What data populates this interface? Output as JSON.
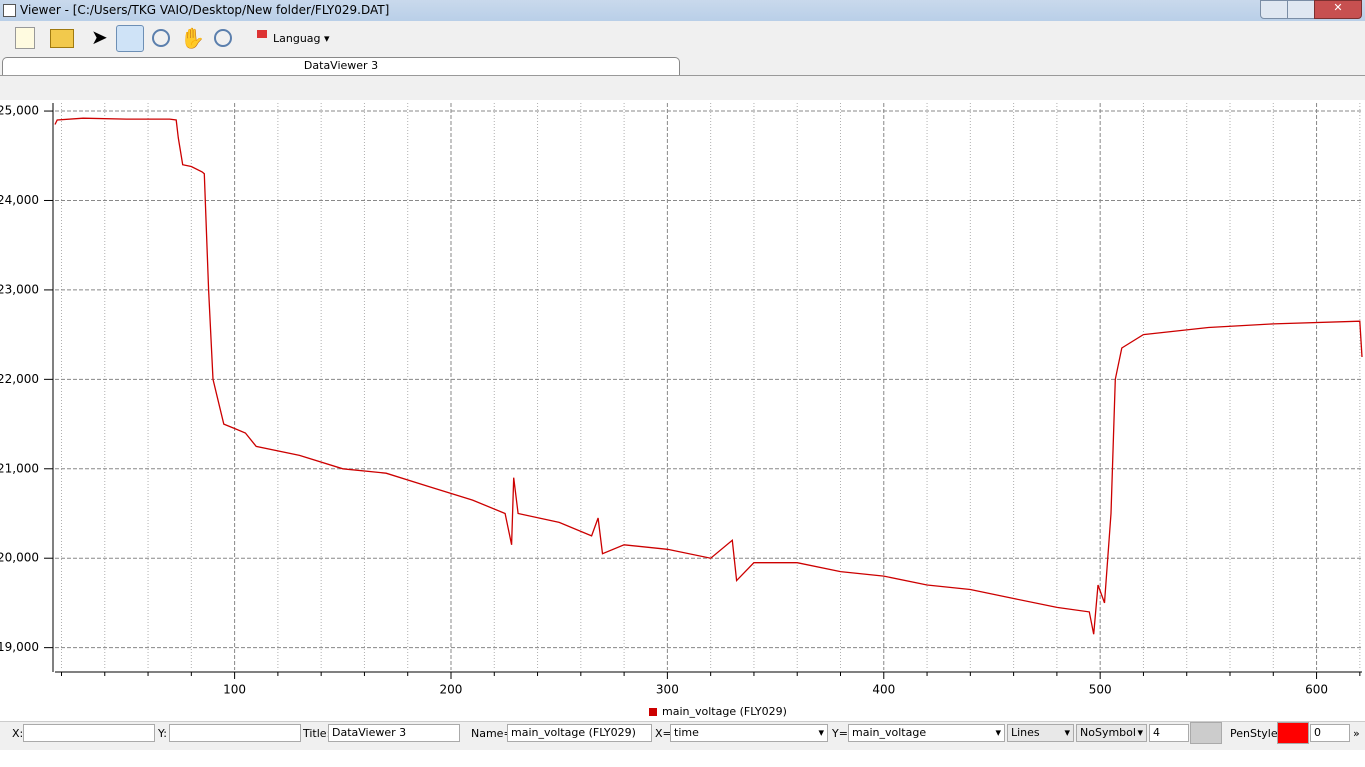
{
  "window": {
    "title": "Viewer - [C:/Users/TKG VAIO/Desktop/New folder/FLY029.DAT]",
    "toolbar": {
      "language": "Languag"
    },
    "tab": "DataViewer 3",
    "statusbar": {
      "x_label": "X:",
      "y_label": "Y:",
      "title_label": "Title:",
      "title_value": "DataViewer 3",
      "name_label": "Name=",
      "name_value": "main_voltage (FLY029)",
      "xsel_label": "X=",
      "xsel_value": "time",
      "ysel_label": "Y=",
      "ysel_value": "main_voltage",
      "style": "Lines",
      "symbol": "NoSymbol",
      "width": "4",
      "penstyle_label": "PenStyle:",
      "penstyle_value": "0"
    }
  },
  "chart_data": {
    "type": "line",
    "x": [
      17,
      18,
      30,
      50,
      70,
      73,
      74,
      76,
      80,
      85,
      86,
      88,
      90,
      92,
      95,
      100,
      105,
      110,
      130,
      150,
      170,
      190,
      210,
      225,
      228,
      229,
      231,
      250,
      265,
      268,
      270,
      280,
      300,
      320,
      330,
      332,
      340,
      360,
      380,
      400,
      420,
      440,
      460,
      480,
      495,
      497,
      499,
      502,
      505,
      507,
      510,
      520,
      550,
      580,
      620,
      621
    ],
    "series": [
      {
        "name": "main_voltage (FLY029)",
        "color": "#cc0000",
        "values": [
          24850,
          24900,
          24920,
          24910,
          24910,
          24900,
          24700,
          24400,
          24380,
          24320,
          24300,
          23000,
          22000,
          21800,
          21500,
          21450,
          21400,
          21250,
          21150,
          21000,
          20950,
          20800,
          20650,
          20500,
          20150,
          20900,
          20500,
          20400,
          20250,
          20450,
          20050,
          20150,
          20100,
          20000,
          20200,
          19750,
          19950,
          19950,
          19850,
          19800,
          19700,
          19650,
          19550,
          19450,
          19400,
          19150,
          19700,
          19500,
          20500,
          22000,
          22350,
          22500,
          22580,
          22620,
          22650,
          22250
        ]
      }
    ],
    "xlim": [
      17,
      621
    ],
    "ylim": [
      18750,
      25090
    ],
    "xticks": [
      100,
      200,
      300,
      400,
      500,
      600
    ],
    "xminorticks": [
      20,
      40,
      60,
      80,
      120,
      140,
      160,
      180,
      220,
      240,
      260,
      280,
      320,
      340,
      360,
      380,
      420,
      440,
      460,
      480,
      520,
      540,
      560,
      580,
      620
    ],
    "yticks": [
      {
        "value": 19000,
        "label": "19,000"
      },
      {
        "value": 20000,
        "label": "20,000"
      },
      {
        "value": 21000,
        "label": "21,000"
      },
      {
        "value": 22000,
        "label": "22,000"
      },
      {
        "value": 23000,
        "label": "23,000"
      },
      {
        "value": 24000,
        "label": "24,000"
      },
      {
        "value": 25000,
        "label": "25,000"
      }
    ],
    "grid": true
  }
}
